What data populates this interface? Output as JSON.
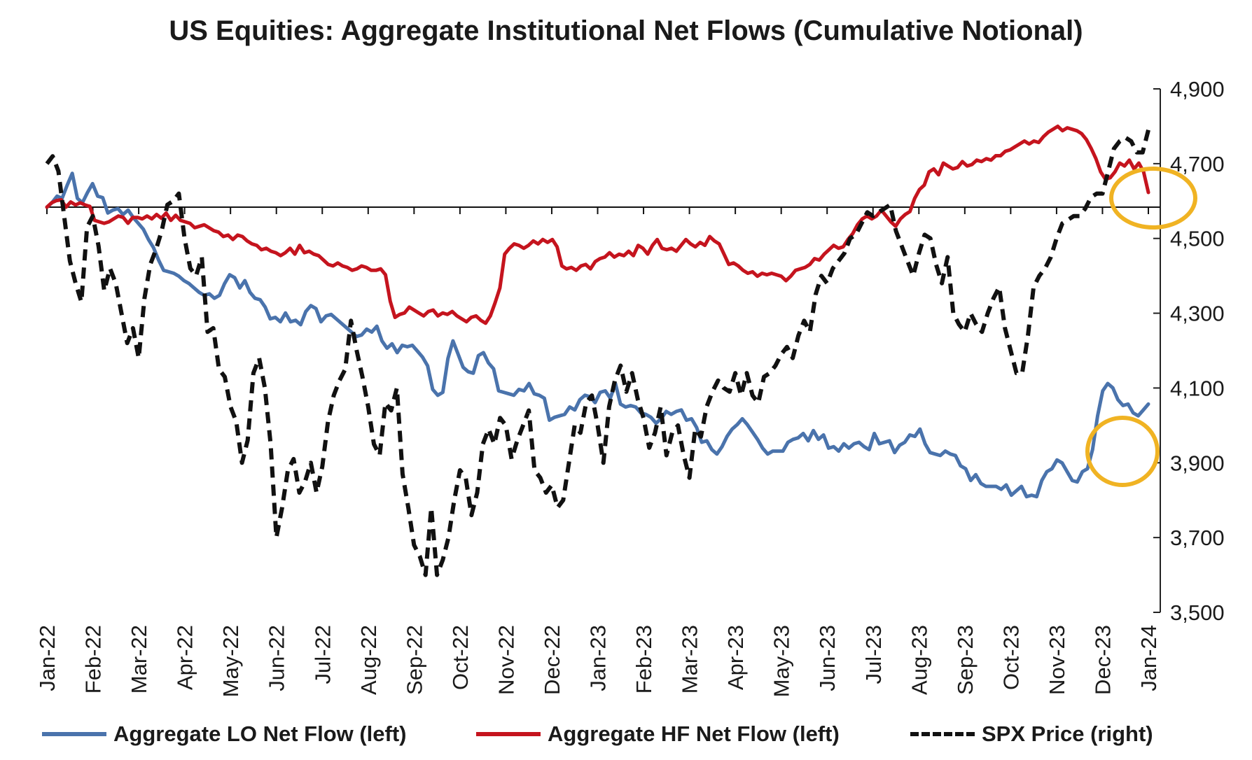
{
  "chart_data": {
    "type": "line",
    "title": "US Equities: Aggregate Institutional Net Flows (Cumulative Notional)",
    "x_ticks": [
      "Jan-22",
      "Feb-22",
      "Mar-22",
      "Apr-22",
      "May-22",
      "Jun-22",
      "Jul-22",
      "Aug-22",
      "Sep-22",
      "Oct-22",
      "Nov-22",
      "Dec-22",
      "Jan-23",
      "Feb-23",
      "Mar-23",
      "Apr-23",
      "May-23",
      "Jun-23",
      "Jul-23",
      "Aug-23",
      "Sep-23",
      "Oct-23",
      "Nov-23",
      "Dec-23",
      "Jan-24"
    ],
    "y_right": {
      "label": "",
      "ylim": [
        3500,
        4900
      ],
      "ticks": [
        "3,500",
        "3,700",
        "3,900",
        "4,100",
        "4,300",
        "4,500",
        "4,700",
        "4,900"
      ],
      "tick_values": [
        3500,
        3700,
        3900,
        4100,
        4300,
        4500,
        4700,
        4900
      ]
    },
    "y_left": {
      "label": "",
      "ticks": [],
      "zero_line": true
    },
    "grid": false,
    "legend_position": "bottom",
    "series": [
      {
        "name": "Aggregate LO Net Flow (left)",
        "axis": "left",
        "color": "#4a73ac",
        "style": "solid",
        "values": [
          0.0,
          0.3,
          0.75,
          0.6,
          1.5,
          2.3,
          0.6,
          0.3,
          1.0,
          1.6,
          0.75,
          0.65,
          -0.4,
          -0.2,
          -0.1,
          -0.5,
          -0.2,
          -0.7,
          -1.1,
          -1.5,
          -2.2,
          -2.75,
          -3.6,
          -4.3,
          -4.4,
          -4.5,
          -4.7,
          -5.0,
          -5.2,
          -5.5,
          -5.8,
          -6.0,
          -5.9,
          -6.2,
          -6.0,
          -5.2,
          -4.6,
          -4.8,
          -5.5,
          -5.0,
          -5.8,
          -6.2,
          -6.3,
          -6.8,
          -7.6,
          -7.5,
          -7.8,
          -7.2,
          -7.8,
          -7.7,
          -8.0,
          -7.1,
          -6.7,
          -6.9,
          -7.8,
          -7.4,
          -7.3,
          -7.6,
          -7.9,
          -8.2,
          -8.5,
          -8.8,
          -8.7,
          -8.3,
          -8.5,
          -8.1,
          -9.1,
          -9.6,
          -9.3,
          -9.9,
          -9.4,
          -9.5,
          -9.4,
          -9.8,
          -10.2,
          -10.8,
          -12.4,
          -12.8,
          -12.6,
          -10.3,
          -9.1,
          -10.0,
          -10.9,
          -11.2,
          -11.3,
          -10.1,
          -9.9,
          -10.6,
          -11.0,
          -12.5,
          -12.6,
          -12.7,
          -12.8,
          -12.4,
          -12.5,
          -12.0,
          -12.7,
          -12.8,
          -13.0,
          -14.5,
          -14.3,
          -14.2,
          -14.1,
          -13.6,
          -13.8,
          -13.1,
          -12.8,
          -12.9,
          -13.3,
          -12.6,
          -12.5,
          -13.0,
          -12.0,
          -13.4,
          -13.6,
          -13.5,
          -13.6,
          -14.0,
          -14.1,
          -14.3,
          -14.7,
          -14.4,
          -13.9,
          -14.1,
          -13.9,
          -13.8,
          -14.5,
          -14.4,
          -15.0,
          -16.0,
          -15.9,
          -16.5,
          -16.8,
          -16.3,
          -15.6,
          -15.1,
          -14.8,
          -14.4,
          -14.8,
          -15.3,
          -15.8,
          -16.4,
          -16.8,
          -16.6,
          -16.6,
          -16.6,
          -16.0,
          -15.8,
          -15.7,
          -15.4,
          -15.9,
          -15.2,
          -15.8,
          -15.5,
          -16.4,
          -16.3,
          -16.6,
          -16.1,
          -16.4,
          -16.1,
          -16.0,
          -16.3,
          -16.5,
          -15.4,
          -16.1,
          -16.0,
          -15.9,
          -16.7,
          -16.2,
          -16.0,
          -15.5,
          -15.6,
          -15.1,
          -16.1,
          -16.7,
          -16.8,
          -16.9,
          -16.6,
          -16.8,
          -16.9,
          -17.6,
          -17.8,
          -18.6,
          -18.2,
          -18.8,
          -19.0,
          -19.0,
          -19.0,
          -19.2,
          -18.9,
          -19.6,
          -19.3,
          -19.0,
          -19.7,
          -19.6,
          -19.7,
          -18.6,
          -18.0,
          -17.8,
          -17.2,
          -17.4,
          -18.0,
          -18.6,
          -18.7,
          -18.0,
          -17.8,
          -16.5,
          -14.2,
          -12.5,
          -12.0,
          -12.3,
          -13.1,
          -13.5,
          -13.4,
          -14.0,
          -14.2,
          -13.8,
          -13.4
        ]
      },
      {
        "name": "Aggregate HF Net Flow (left)",
        "axis": "left",
        "color": "#c5141e",
        "style": "solid",
        "values": [
          0.0,
          0.3,
          0.45,
          0.5,
          0.0,
          0.35,
          0.15,
          0.3,
          0.15,
          0.05,
          -0.9,
          -1.0,
          -1.1,
          -1.0,
          -0.8,
          -0.6,
          -0.7,
          -1.1,
          -0.7,
          -0.7,
          -0.8,
          -0.6,
          -0.8,
          -0.5,
          -0.75,
          -0.4,
          -0.9,
          -0.55,
          -0.9,
          -1.0,
          -1.1,
          -1.4,
          -1.3,
          -1.2,
          -1.4,
          -1.6,
          -1.7,
          -2.0,
          -1.9,
          -2.2,
          -1.9,
          -2.0,
          -2.3,
          -2.5,
          -2.6,
          -2.9,
          -2.8,
          -3.0,
          -3.1,
          -3.3,
          -3.1,
          -2.8,
          -3.2,
          -2.6,
          -3.1,
          -3.0,
          -3.2,
          -3.3,
          -3.6,
          -3.9,
          -4.0,
          -3.8,
          -4.0,
          -4.1,
          -4.3,
          -4.2,
          -4.0,
          -4.1,
          -4.3,
          -4.3,
          -4.2,
          -4.6,
          -6.4,
          -7.5,
          -7.3,
          -7.2,
          -6.8,
          -7.0,
          -7.2,
          -7.4,
          -7.1,
          -7.0,
          -7.4,
          -7.2,
          -7.3,
          -7.1,
          -7.4,
          -7.6,
          -7.8,
          -7.5,
          -7.4,
          -7.7,
          -7.9,
          -7.4,
          -6.5,
          -5.5,
          -3.2,
          -2.8,
          -2.5,
          -2.6,
          -2.8,
          -2.6,
          -2.3,
          -2.5,
          -2.2,
          -2.4,
          -2.2,
          -2.7,
          -4.0,
          -4.2,
          -4.1,
          -4.3,
          -4.0,
          -3.9,
          -4.2,
          -3.7,
          -3.5,
          -3.4,
          -3.1,
          -3.4,
          -3.2,
          -3.3,
          -3.0,
          -3.3,
          -2.6,
          -2.8,
          -3.2,
          -2.6,
          -2.2,
          -2.8,
          -2.9,
          -2.8,
          -3.0,
          -2.6,
          -2.2,
          -2.5,
          -2.7,
          -2.4,
          -2.6,
          -2.0,
          -2.3,
          -2.5,
          -3.2,
          -3.9,
          -3.8,
          -4.0,
          -4.3,
          -4.5,
          -4.4,
          -4.7,
          -4.5,
          -4.6,
          -4.5,
          -4.6,
          -4.7,
          -5.0,
          -4.7,
          -4.3,
          -4.2,
          -4.1,
          -3.9,
          -3.5,
          -3.6,
          -3.2,
          -2.9,
          -2.6,
          -2.8,
          -2.7,
          -2.2,
          -1.8,
          -1.2,
          -0.8,
          -0.6,
          -0.8,
          -0.6,
          -0.2,
          -0.6,
          -1.0,
          -1.3,
          -0.8,
          -0.5,
          -0.3,
          0.6,
          1.2,
          1.5,
          2.4,
          2.6,
          2.2,
          3.0,
          2.8,
          2.6,
          2.7,
          3.1,
          2.8,
          2.9,
          3.2,
          3.1,
          3.3,
          3.2,
          3.5,
          3.5,
          3.8,
          3.9,
          4.1,
          4.3,
          4.5,
          4.3,
          4.5,
          4.4,
          4.8,
          5.1,
          5.3,
          5.5,
          5.2,
          5.4,
          5.3,
          5.2,
          5.0,
          4.6,
          4.0,
          3.3,
          2.4,
          1.9,
          2.0,
          2.4,
          3.0,
          2.8,
          3.2,
          2.6,
          3.0,
          2.4,
          1.0
        ]
      },
      {
        "name": "SPX Price (right)",
        "axis": "right",
        "color": "#111111",
        "style": "dashed",
        "values": [
          4700,
          4720,
          4680,
          4560,
          4440,
          4380,
          4330,
          4530,
          4560,
          4480,
          4360,
          4420,
          4380,
          4300,
          4220,
          4260,
          4180,
          4340,
          4430,
          4470,
          4520,
          4590,
          4600,
          4620,
          4500,
          4420,
          4400,
          4450,
          4250,
          4260,
          4150,
          4130,
          4050,
          4010,
          3900,
          3960,
          4140,
          4180,
          4100,
          3950,
          3700,
          3780,
          3880,
          3910,
          3820,
          3850,
          3900,
          3820,
          3890,
          4010,
          4080,
          4120,
          4150,
          4280,
          4200,
          4130,
          4050,
          3950,
          3920,
          4060,
          4040,
          4100,
          3870,
          3780,
          3680,
          3650,
          3600,
          3780,
          3600,
          3640,
          3700,
          3800,
          3880,
          3860,
          3760,
          3820,
          3950,
          3990,
          3950,
          4020,
          4000,
          3910,
          3960,
          4000,
          4040,
          3880,
          3860,
          3820,
          3840,
          3780,
          3800,
          3900,
          4000,
          3980,
          4060,
          4080,
          4000,
          3900,
          4050,
          4120,
          4160,
          4090,
          4140,
          4070,
          4020,
          3940,
          3980,
          4050,
          3920,
          3980,
          4000,
          3920,
          3860,
          3990,
          3970,
          4050,
          4090,
          4120,
          4100,
          4090,
          4140,
          4080,
          4140,
          4080,
          4060,
          4130,
          4140,
          4160,
          4190,
          4210,
          4180,
          4240,
          4280,
          4250,
          4350,
          4400,
          4380,
          4420,
          4440,
          4460,
          4500,
          4510,
          4540,
          4570,
          4560,
          4570,
          4580,
          4590,
          4520,
          4480,
          4440,
          4400,
          4460,
          4510,
          4500,
          4430,
          4380,
          4450,
          4300,
          4270,
          4250,
          4300,
          4270,
          4250,
          4300,
          4340,
          4370,
          4260,
          4200,
          4140,
          4140,
          4240,
          4370,
          4400,
          4420,
          4450,
          4500,
          4540,
          4550,
          4560,
          4560,
          4580,
          4610,
          4620,
          4620,
          4680,
          4740,
          4760,
          4770,
          4760,
          4730,
          4730,
          4790
        ]
      }
    ]
  },
  "legend": {
    "lo_label": "Aggregate LO Net Flow (left)",
    "hf_label": "Aggregate HF Net Flow (left)",
    "spx_label": "SPX Price (right)"
  },
  "annotations": [
    {
      "type": "circle",
      "color": "#f0b323",
      "target": "HF Net Flow end"
    },
    {
      "type": "circle",
      "color": "#f0b323",
      "target": "LO Net Flow end"
    }
  ]
}
